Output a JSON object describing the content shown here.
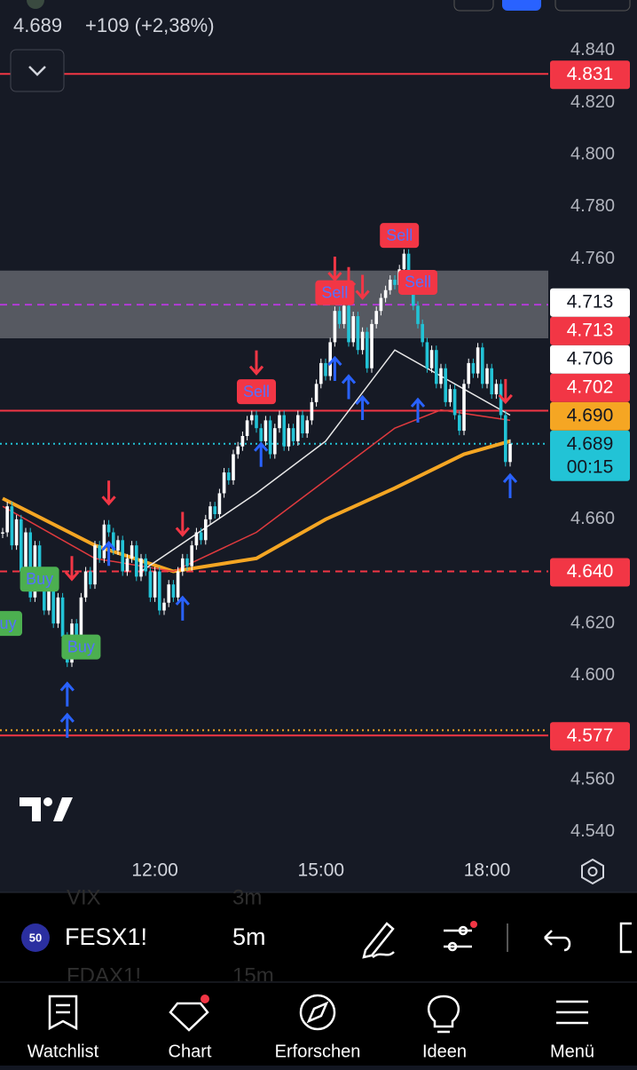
{
  "header": {
    "price": "4.689",
    "change": "+109 (+2,38%)"
  },
  "chart": {
    "ylim": [
      4.5338,
      4.8594
    ],
    "yticks": [
      {
        "value": 4.84,
        "label": "4.840"
      },
      {
        "value": 4.82,
        "label": "4.820"
      },
      {
        "value": 4.8,
        "label": "4.800"
      },
      {
        "value": 4.78,
        "label": "4.780"
      },
      {
        "value": 4.76,
        "label": "4.760"
      },
      {
        "value": 4.66,
        "label": "4.660"
      },
      {
        "value": 4.62,
        "label": "4.620"
      },
      {
        "value": 4.6,
        "label": "4.600"
      },
      {
        "value": 4.56,
        "label": "4.560"
      },
      {
        "value": 4.54,
        "label": "4.540"
      }
    ],
    "time_ticks": [
      {
        "index": 33,
        "label": "12:00"
      },
      {
        "index": 69,
        "label": "15:00"
      },
      {
        "index": 105,
        "label": "18:00"
      }
    ],
    "up_color": "#ffffff",
    "down_color": "#22c3d6",
    "candles": [
      4.655,
      4.665,
      4.65,
      4.66,
      4.64,
      4.655,
      4.63,
      4.65,
      4.635,
      4.625,
      4.64,
      4.62,
      4.63,
      4.615,
      4.605,
      4.62,
      4.612,
      4.63,
      4.64,
      4.635,
      4.65,
      4.645,
      4.658,
      4.655,
      4.648,
      4.652,
      4.64,
      4.645,
      4.65,
      4.638,
      4.645,
      4.64,
      4.63,
      4.64,
      4.625,
      4.628,
      4.635,
      4.63,
      4.64,
      4.645,
      4.642,
      4.65,
      4.655,
      4.652,
      4.66,
      4.665,
      4.662,
      4.67,
      4.678,
      4.675,
      4.685,
      4.688,
      4.692,
      4.698,
      4.7,
      4.695,
      4.69,
      4.698,
      4.685,
      4.695,
      4.7,
      4.688,
      4.695,
      4.69,
      4.7,
      4.693,
      4.698,
      4.705,
      4.712,
      4.72,
      4.715,
      4.728,
      4.74,
      4.735,
      4.742,
      4.728,
      4.738,
      4.725,
      4.732,
      4.718,
      4.735,
      4.74,
      4.745,
      4.748,
      4.752,
      4.75,
      4.756,
      4.762,
      4.75,
      4.742,
      4.735,
      4.728,
      4.718,
      4.725,
      4.712,
      4.718,
      4.705,
      4.71,
      4.7,
      4.694,
      4.712,
      4.72,
      4.716,
      4.726,
      4.712,
      4.718,
      4.708,
      4.712,
      4.7,
      4.682,
      4.689
    ],
    "moving_averages": [
      {
        "color": "#f5a623",
        "index": [
          0,
          20,
          37,
          55,
          70,
          85,
          100,
          110
        ],
        "values": [
          4.668,
          4.65,
          4.64,
          4.645,
          4.66,
          4.672,
          4.685,
          4.69
        ]
      },
      {
        "color": "#e03a3e",
        "index": [
          0,
          20,
          37,
          55,
          70,
          85,
          95,
          110
        ],
        "values": [
          4.665,
          4.645,
          4.64,
          4.655,
          4.675,
          4.695,
          4.702,
          4.698
        ]
      },
      {
        "color": "#e8e8e8",
        "index": [
          30,
          55,
          70,
          85,
          95,
          110
        ],
        "values": [
          4.64,
          4.67,
          4.69,
          4.725,
          4.715,
          4.7
        ]
      }
    ],
    "zone": {
      "top": 4.7555,
      "bottom": 4.7295,
      "color": "#ffffff"
    },
    "lines": [
      {
        "value": 4.831,
        "color": "#f23645",
        "style": "solid"
      },
      {
        "value": 4.7424,
        "color": "#b23bd6",
        "style": "dashed"
      },
      {
        "value": 4.7017,
        "color": "#f23645",
        "style": "solid"
      },
      {
        "value": 4.689,
        "color": "#22c3d6",
        "style": "dotted"
      },
      {
        "value": 4.64,
        "color": "#f23645",
        "style": "dashed"
      },
      {
        "value": 4.579,
        "color": "#f5a623",
        "style": "dotted"
      },
      {
        "value": 4.577,
        "color": "#f23645",
        "style": "solid"
      }
    ],
    "price_labels": [
      {
        "value": 4.831,
        "label": "4.831",
        "bg": "#f23645",
        "fg": "#ffffff"
      },
      {
        "value": 4.713,
        "label": "4.713",
        "bg": "#ffffff",
        "fg": "#131722"
      },
      {
        "value": 4.713,
        "label": "4.713",
        "bg": "#f23645",
        "fg": "#ffffff"
      },
      {
        "value": 4.706,
        "label": "4.706",
        "bg": "#ffffff",
        "fg": "#131722"
      },
      {
        "value": 4.702,
        "label": "4.702",
        "bg": "#f23645",
        "fg": "#ffffff"
      },
      {
        "value": 4.69,
        "label": "4.690",
        "bg": "#f5a623",
        "fg": "#131722"
      },
      {
        "value": 4.689,
        "label": "4.689",
        "bg": "#22c3d6",
        "fg": "#131722",
        "countdown": "00:15"
      },
      {
        "value": 4.64,
        "label": "4.640",
        "bg": "#f23645",
        "fg": "#ffffff"
      },
      {
        "value": 4.577,
        "label": "4.577",
        "bg": "#f23645",
        "fg": "#ffffff"
      }
    ],
    "arrows": [
      {
        "index": 15,
        "price": 4.637,
        "dir": "down"
      },
      {
        "index": 23,
        "price": 4.666,
        "dir": "down"
      },
      {
        "index": 39,
        "price": 4.654,
        "dir": "down"
      },
      {
        "index": 55,
        "price": 4.716,
        "dir": "down"
      },
      {
        "index": 72,
        "price": 4.752,
        "dir": "down"
      },
      {
        "index": 75,
        "price": 4.748,
        "dir": "down"
      },
      {
        "index": 78,
        "price": 4.745,
        "dir": "down"
      },
      {
        "index": 109,
        "price": 4.705,
        "dir": "down"
      },
      {
        "index": 14,
        "price": 4.597,
        "dir": "up"
      },
      {
        "index": 14,
        "price": 4.585,
        "dir": "up"
      },
      {
        "index": 23,
        "price": 4.651,
        "dir": "up"
      },
      {
        "index": 39,
        "price": 4.63,
        "dir": "up"
      },
      {
        "index": 56,
        "price": 4.689,
        "dir": "up"
      },
      {
        "index": 72,
        "price": 4.722,
        "dir": "up"
      },
      {
        "index": 75,
        "price": 4.715,
        "dir": "up"
      },
      {
        "index": 78,
        "price": 4.707,
        "dir": "up"
      },
      {
        "index": 90,
        "price": 4.706,
        "dir": "up"
      },
      {
        "index": 110,
        "price": 4.677,
        "dir": "up"
      }
    ],
    "tags": [
      {
        "index": 55,
        "price": 4.709,
        "text": "Sell",
        "color": "#f23645"
      },
      {
        "index": 72,
        "price": 4.747,
        "text": "Sell",
        "color": "#f23645"
      },
      {
        "index": 86,
        "price": 4.769,
        "text": "Sell",
        "color": "#f23645"
      },
      {
        "index": 90,
        "price": 4.751,
        "text": "Sell",
        "color": "#f23645"
      },
      {
        "index": 8,
        "price": 4.637,
        "text": "Buy",
        "color": "#4caf50"
      },
      {
        "index": 0,
        "price": 4.62,
        "text": "Buy",
        "color": "#4caf50"
      },
      {
        "index": 17,
        "price": 4.611,
        "text": "Buy",
        "color": "#4caf50"
      }
    ]
  },
  "toolbar": {
    "badge": "50",
    "symbol": "FESX1!",
    "interval": "5m",
    "ghost": {
      "symbol_above": "VIX",
      "interval_above": "3m",
      "symbol_below": "FDAX1!",
      "interval_below": "15m"
    }
  },
  "nav": [
    "Watchlist",
    "Chart",
    "Erforschen",
    "Ideen",
    "Menü"
  ]
}
